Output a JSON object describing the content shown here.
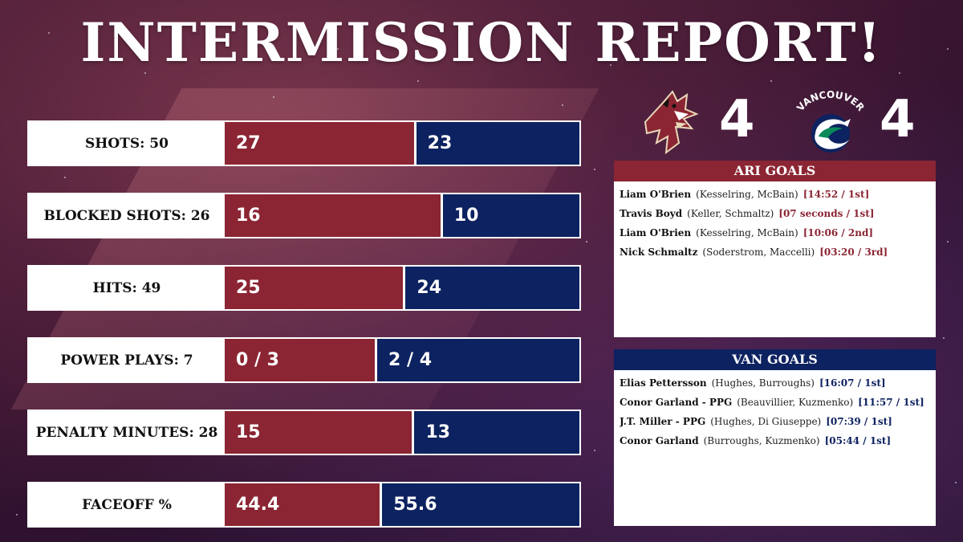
{
  "title": "INTERMISSION REPORT!",
  "colors": {
    "ari": "#8b2533",
    "van": "#0d2260"
  },
  "teams": {
    "ari": {
      "logo": "coyotes-logo",
      "score": "4"
    },
    "van": {
      "logo": "canucks-logo",
      "logo_text": "VANCOUVER",
      "score": "4"
    }
  },
  "stats": [
    {
      "label": "SHOTS: 50",
      "ari": "27",
      "van": "23",
      "ari_share": 0.54
    },
    {
      "label": "BLOCKED SHOTS: 26",
      "ari": "16",
      "van": "10",
      "ari_share": 0.615
    },
    {
      "label": "HITS: 49",
      "ari": "25",
      "van": "24",
      "ari_share": 0.51
    },
    {
      "label": "POWER PLAYS: 7",
      "ari": "0 / 3",
      "van": "2 / 4",
      "ari_share": 0.43
    },
    {
      "label": "PENALTY MINUTES: 28",
      "ari": "15",
      "van": "13",
      "ari_share": 0.535
    },
    {
      "label": "FACEOFF %",
      "ari": "44.4",
      "van": "55.6",
      "ari_share": 0.444
    }
  ],
  "ari_goals": {
    "header": "ARI GOALS",
    "items": [
      {
        "scorer": "Liam O'Brien",
        "assists": "(Kesselring, McBain)",
        "time": "[14:52 / 1st]"
      },
      {
        "scorer": "Travis Boyd",
        "assists": "(Keller, Schmaltz)",
        "time": "[07 seconds / 1st]"
      },
      {
        "scorer": "Liam O'Brien",
        "assists": "(Kesselring, McBain)",
        "time": "[10:06 / 2nd]"
      },
      {
        "scorer": "Nick Schmaltz",
        "assists": "(Soderstrom, Maccelli)",
        "time": "[03:20 / 3rd]"
      }
    ]
  },
  "van_goals": {
    "header": "VAN GOALS",
    "items": [
      {
        "scorer": "Elias Pettersson",
        "assists": "(Hughes, Burroughs)",
        "time": "[16:07 / 1st]"
      },
      {
        "scorer": "Conor Garland - PPG",
        "assists": "(Beauvillier, Kuzmenko)",
        "time": "[11:57 / 1st]"
      },
      {
        "scorer": "J.T. Miller - PPG",
        "assists": "(Hughes, Di Giuseppe)",
        "time": "[07:39 / 1st]"
      },
      {
        "scorer": "Conor Garland",
        "assists": "(Burroughs, Kuzmenko)",
        "time": "[05:44 / 1st]"
      }
    ]
  }
}
